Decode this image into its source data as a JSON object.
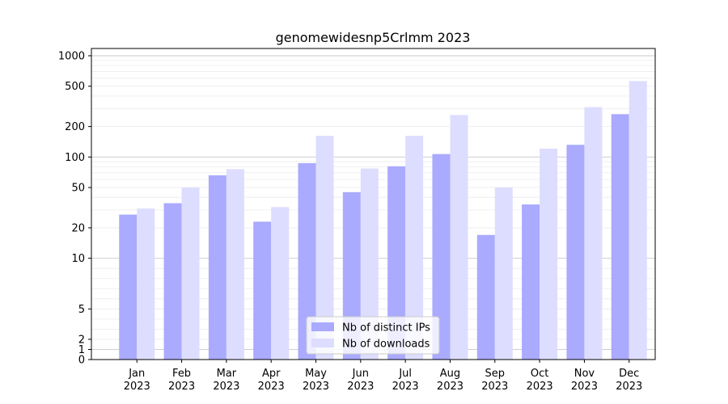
{
  "chart_data": {
    "type": "bar",
    "title": "genomewidesnp5Crlmm 2023",
    "xlabel": "",
    "ylabel": "",
    "categories": [
      "Jan\n2023",
      "Feb\n2023",
      "Mar\n2023",
      "Apr\n2023",
      "May\n2023",
      "Jun\n2023",
      "Jul\n2023",
      "Aug\n2023",
      "Sep\n2023",
      "Oct\n2023",
      "Nov\n2023",
      "Dec\n2023"
    ],
    "series": [
      {
        "name": "Nb of distinct IPs",
        "color": "#aaaaff",
        "values": [
          27,
          35,
          66,
          23,
          87,
          45,
          81,
          107,
          17,
          34,
          132,
          265
        ]
      },
      {
        "name": "Nb of downloads",
        "color": "#ddddff",
        "values": [
          31,
          50,
          76,
          32,
          162,
          77,
          162,
          260,
          50,
          121,
          311,
          562
        ]
      }
    ],
    "yscale": "symlog",
    "ylim": [
      0,
      1000
    ],
    "yticks": [
      0,
      1,
      2,
      5,
      10,
      20,
      50,
      100,
      200,
      500,
      1000
    ],
    "grid": true,
    "legend": "bottom-center"
  }
}
